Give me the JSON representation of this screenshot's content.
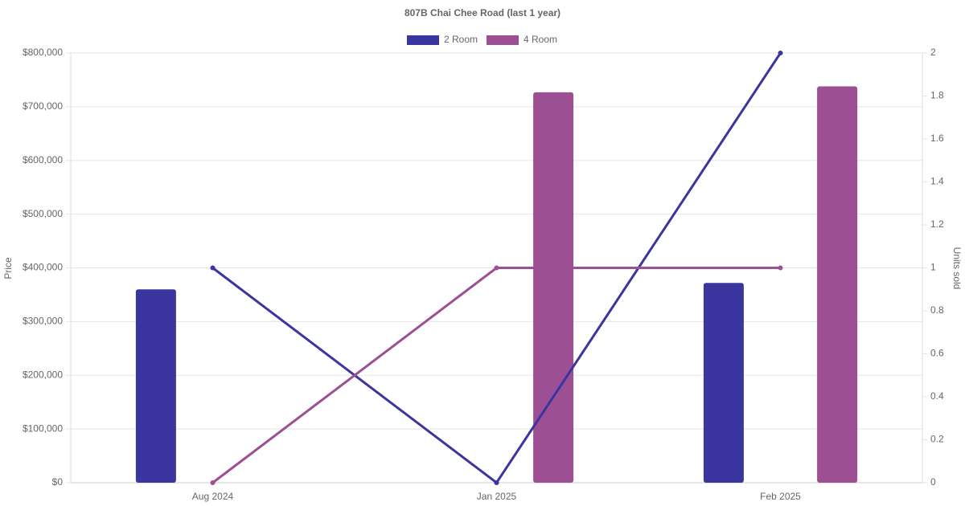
{
  "chart_data": {
    "type": "bar-line",
    "title": "807B Chai Chee Road (last 1 year)",
    "y_label": "Price",
    "y2_label": "Units sold",
    "categories": [
      "Aug 2024",
      "Jan 2025",
      "Feb 2025"
    ],
    "series": [
      {
        "name": "2 Room",
        "color": "#3b35a0",
        "values": [
          360000,
          null,
          372000
        ],
        "y2_values": [
          1,
          0,
          2
        ]
      },
      {
        "name": "4 Room",
        "color": "#9c4f93",
        "values": [
          null,
          727000,
          738000
        ],
        "y2_values": [
          0,
          1,
          1
        ]
      }
    ],
    "ylim": [
      0,
      800000
    ],
    "yticks": [
      {
        "value": 0,
        "label": "$0"
      },
      {
        "value": 100000,
        "label": "$100,000"
      },
      {
        "value": 200000,
        "label": "$200,000"
      },
      {
        "value": 300000,
        "label": "$300,000"
      },
      {
        "value": 400000,
        "label": "$400,000"
      },
      {
        "value": 500000,
        "label": "$500,000"
      },
      {
        "value": 600000,
        "label": "$600,000"
      },
      {
        "value": 700000,
        "label": "$700,000"
      },
      {
        "value": 800000,
        "label": "$800,000"
      }
    ],
    "y2lim": [
      0,
      2
    ],
    "y2ticks": [
      0,
      0.2,
      0.4,
      0.6,
      0.8,
      1,
      1.2,
      1.4,
      1.6,
      1.8,
      2
    ],
    "grid": true
  }
}
